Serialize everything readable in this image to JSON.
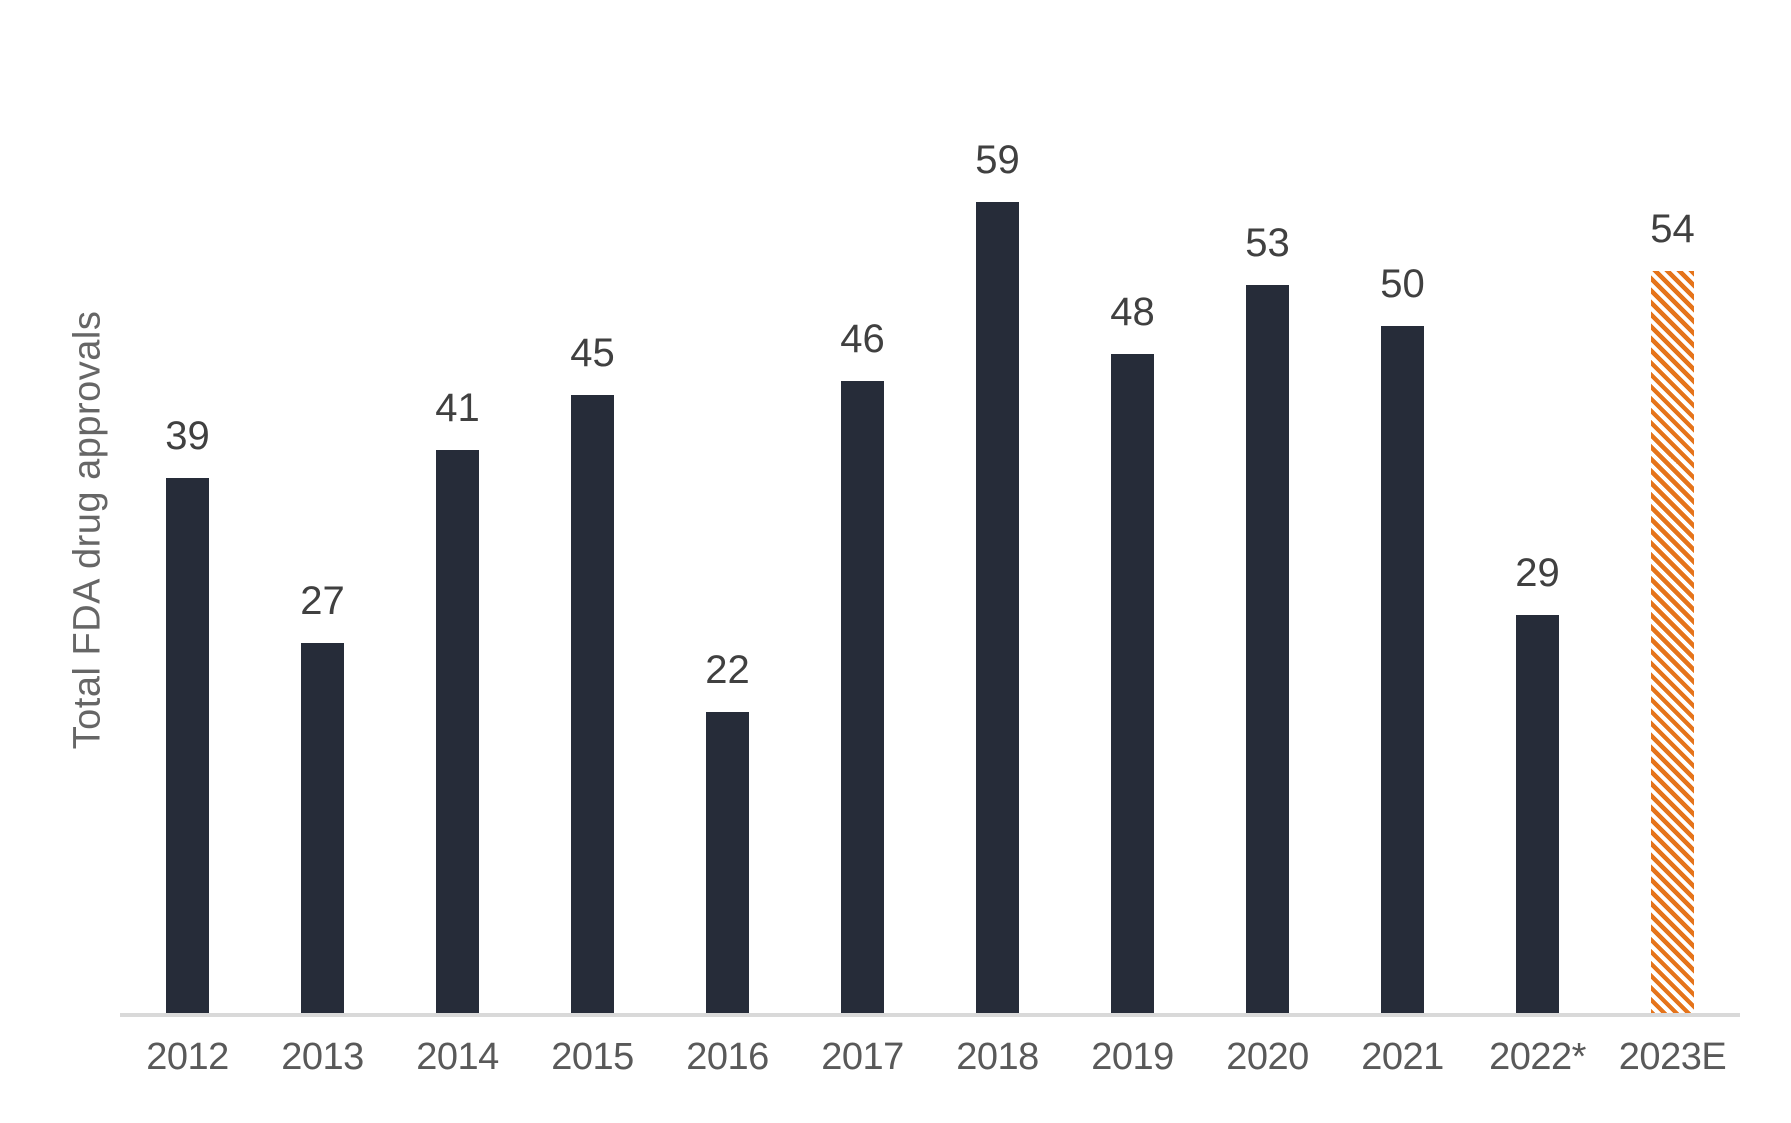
{
  "chart_data": {
    "type": "bar",
    "title": "",
    "xlabel": "",
    "ylabel": "Total FDA drug approvals",
    "categories": [
      "2012",
      "2013",
      "2014",
      "2015",
      "2016",
      "2017",
      "2018",
      "2019",
      "2020",
      "2021",
      "2022*",
      "2023E"
    ],
    "values": [
      39,
      27,
      41,
      45,
      22,
      46,
      59,
      48,
      53,
      50,
      29,
      54
    ],
    "ylim": [
      0,
      59
    ],
    "grid": false,
    "legend_position": "none",
    "data_labels_shown": true,
    "bar_color": "#262C39",
    "estimated_bar": {
      "category": "2023E",
      "value": 54,
      "style": "diagonal-hatch",
      "color": "#E5741B"
    },
    "axis_line_color": "#D9D9D9",
    "value_label_color": "#404040",
    "tick_label_color": "#595959",
    "ylabel_color": "#666666"
  }
}
